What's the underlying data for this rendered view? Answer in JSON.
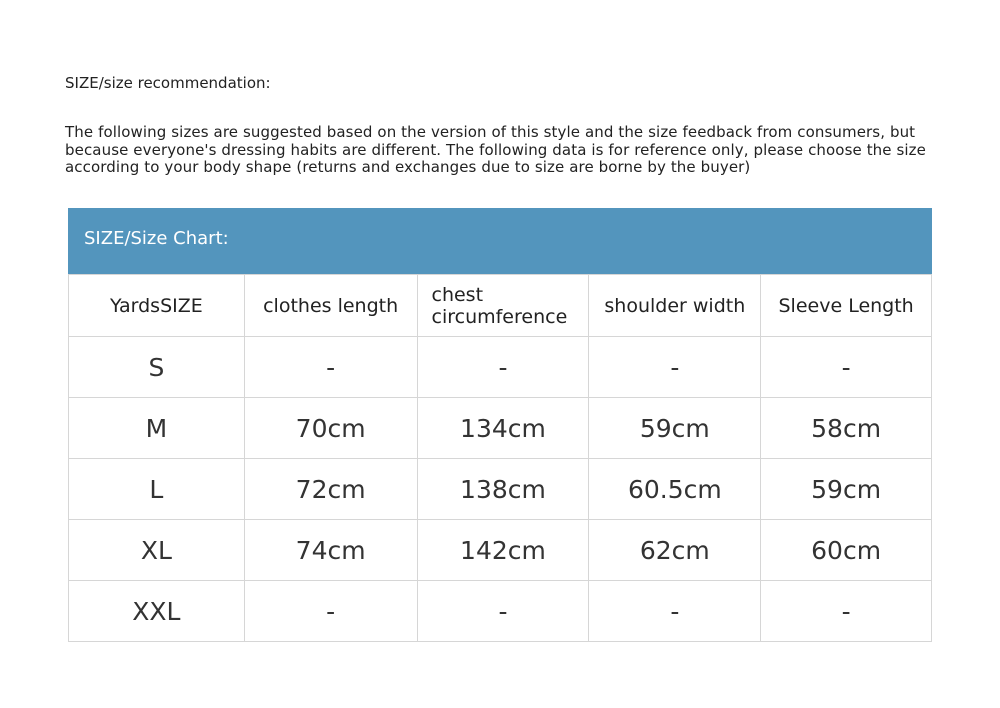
{
  "title": "SIZE/size recommendation:",
  "description": "The following sizes are suggested based on the version of this style and the size feedback from consumers, but because everyone's dressing habits are different. The following data is for reference only, please choose the size according to your body shape (returns and exchanges due to size are borne by the buyer)",
  "table": {
    "caption": "SIZE/Size Chart:",
    "header_color": "#5395bd",
    "columns": [
      "YardsSIZE",
      "clothes length",
      "chest circumference",
      "shoulder width",
      "Sleeve Length"
    ],
    "rows": [
      [
        "S",
        "-",
        "-",
        "-",
        "-"
      ],
      [
        "M",
        "70cm",
        "134cm",
        "59cm",
        "58cm"
      ],
      [
        "L",
        "72cm",
        "138cm",
        "60.5cm",
        "59cm"
      ],
      [
        "XL",
        "74cm",
        "142cm",
        "62cm",
        "60cm"
      ],
      [
        "XXL",
        "-",
        "-",
        "-",
        "-"
      ]
    ]
  }
}
